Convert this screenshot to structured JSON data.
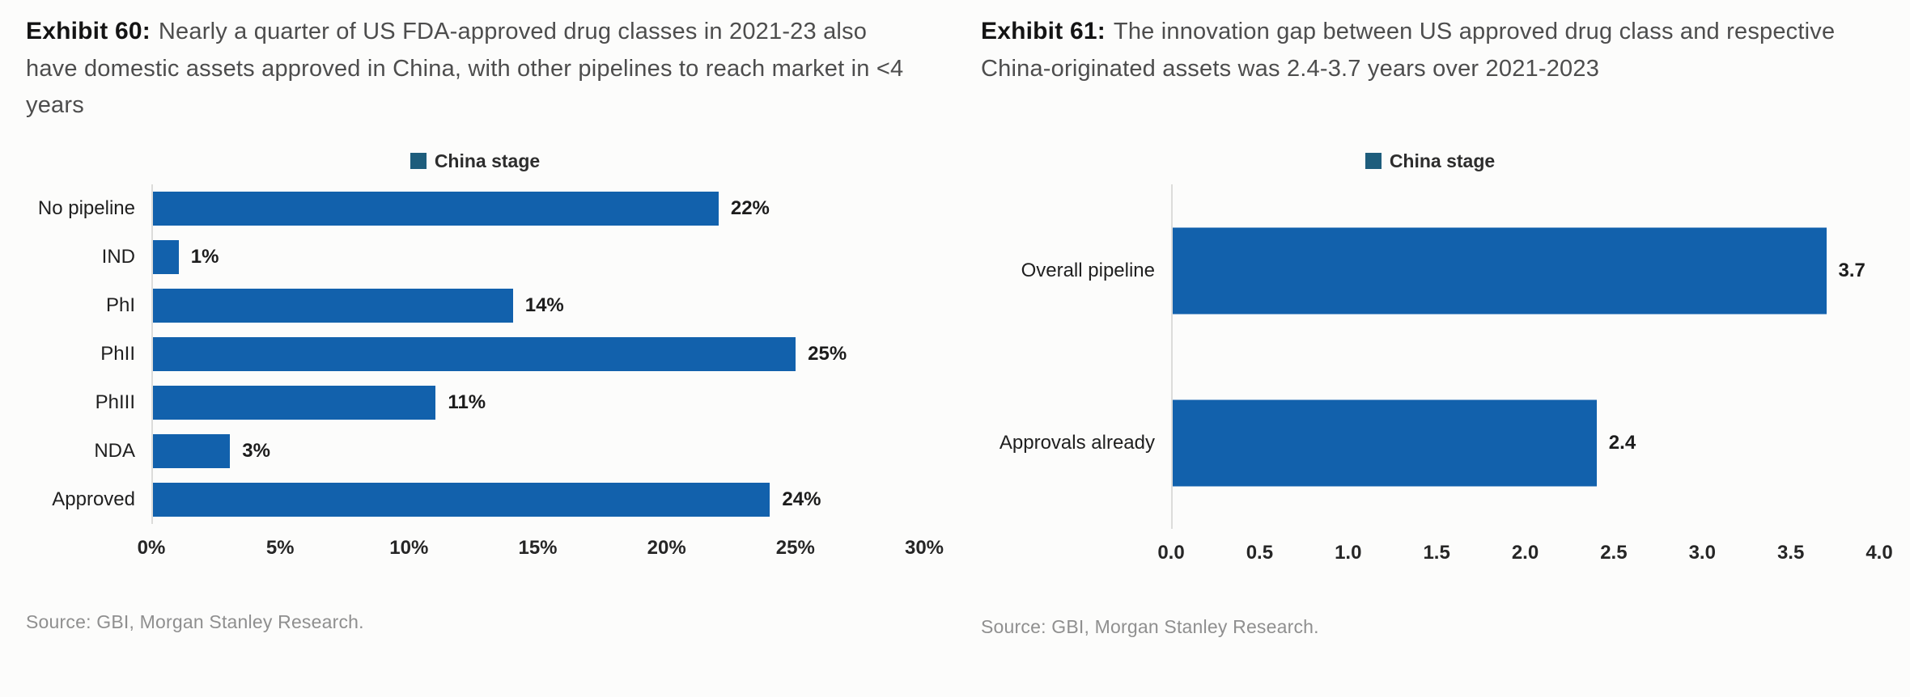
{
  "panels": [
    {
      "exhibit_label": "Exhibit 60:",
      "caption": "Nearly a quarter of US FDA-approved drug classes in 2021-23 also have domestic assets approved in China, with other pipelines to reach market in <4 years"
    },
    {
      "exhibit_label": "Exhibit 61:",
      "caption": "The innovation gap between US approved drug class and respective China-originated assets was 2.4-3.7 years over 2021-2023"
    }
  ],
  "chart_data": [
    {
      "type": "bar",
      "orientation": "horizontal",
      "title": "Exhibit 60: Nearly a quarter of US FDA-approved drug classes in 2021-23 also have domestic assets approved in China, with other pipelines to reach market in <4 years",
      "legend": [
        "China stage"
      ],
      "legend_position": "top-center",
      "categories": [
        "No pipeline",
        "IND",
        "PhI",
        "PhII",
        "PhIII",
        "NDA",
        "Approved"
      ],
      "values": [
        22,
        1,
        14,
        25,
        11,
        3,
        24
      ],
      "value_labels": [
        "22%",
        "1%",
        "14%",
        "25%",
        "11%",
        "3%",
        "24%"
      ],
      "xlabel": "",
      "ylabel": "",
      "xlim": [
        0,
        30
      ],
      "xticks": [
        "0%",
        "5%",
        "10%",
        "15%",
        "20%",
        "25%",
        "30%"
      ],
      "grid": false,
      "bar_color": "#1261ac",
      "legend_swatch_color": "#1e5d7c",
      "source": "Source: GBI, Morgan Stanley Research."
    },
    {
      "type": "bar",
      "orientation": "horizontal",
      "title": "Exhibit 61: The innovation gap between US approved drug class and respective China-originated assets was 2.4-3.7 years over 2021-2023",
      "legend": [
        "China stage"
      ],
      "legend_position": "top-center",
      "categories": [
        "Overall pipeline",
        "Approvals already"
      ],
      "values": [
        3.7,
        2.4
      ],
      "value_labels": [
        "3.7",
        "2.4"
      ],
      "xlabel": "",
      "ylabel": "",
      "xlim": [
        0,
        4
      ],
      "xticks": [
        "0.0",
        "0.5",
        "1.0",
        "1.5",
        "2.0",
        "2.5",
        "3.0",
        "3.5",
        "4.0"
      ],
      "grid": false,
      "bar_color": "#1261ac",
      "legend_swatch_color": "#1e5d7c",
      "source": "Source: GBI, Morgan Stanley Research."
    }
  ]
}
